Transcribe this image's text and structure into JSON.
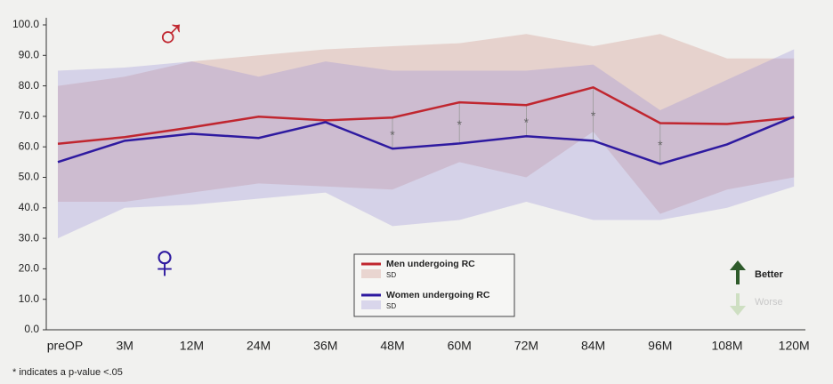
{
  "chart_data": {
    "type": "line",
    "categories": [
      "preOP",
      "3M",
      "12M",
      "24M",
      "36M",
      "48M",
      "60M",
      "72M",
      "84M",
      "96M",
      "108M",
      "120M"
    ],
    "series": [
      {
        "name": "Men undergoing RC",
        "color": "#c0262f",
        "values": [
          61,
          63.2,
          66.4,
          69.9,
          68.7,
          69.6,
          74.6,
          73.7,
          79.5,
          67.8,
          67.5,
          69.6
        ],
        "band": {
          "name": "SD",
          "color": "rgba(214,160,150,0.38)",
          "upper": [
            80,
            83,
            88,
            90,
            92,
            93,
            94,
            97,
            93,
            97,
            89,
            89
          ],
          "lower": [
            42,
            42,
            45,
            48,
            47,
            46,
            55,
            50,
            65,
            38,
            46,
            50
          ]
        }
      },
      {
        "name": "Women undergoing RC",
        "color": "#2e1aa0",
        "values": [
          55,
          62,
          64.3,
          62.9,
          68.1,
          59.4,
          61.1,
          63.5,
          62,
          54.4,
          60.8,
          69.9
        ],
        "band": {
          "name": "SD",
          "color": "rgba(150,140,215,0.3)",
          "upper": [
            85,
            86,
            88,
            83,
            88,
            85,
            85,
            85,
            87,
            72,
            82,
            92
          ],
          "lower": [
            30,
            40,
            41,
            43,
            45,
            34,
            36,
            42,
            36,
            36,
            40,
            47
          ]
        }
      }
    ],
    "significance_marks": [
      null,
      null,
      null,
      null,
      null,
      "*",
      "*",
      "*",
      "*",
      "*",
      null,
      null
    ],
    "ylim": [
      0,
      100
    ],
    "yticks": [
      {
        "value": 0,
        "label": "0.0"
      },
      {
        "value": 10,
        "label": "10.0"
      },
      {
        "value": 20,
        "label": "20.0"
      },
      {
        "value": 30,
        "label": "30.0"
      },
      {
        "value": 40,
        "label": "40.0"
      },
      {
        "value": 50,
        "label": "50.0"
      },
      {
        "value": 60,
        "label": "60.0"
      },
      {
        "value": 70,
        "label": "70.0"
      },
      {
        "value": 80,
        "label": "80.0"
      },
      {
        "value": 90,
        "label": "90.0"
      },
      {
        "value": 100,
        "label": "100.0"
      }
    ],
    "grid": false,
    "symbols": [
      "♂",
      "♀"
    ],
    "direction_labels": [
      "Better",
      "Worse"
    ],
    "footnote": "* indicates a p-value <.05"
  }
}
